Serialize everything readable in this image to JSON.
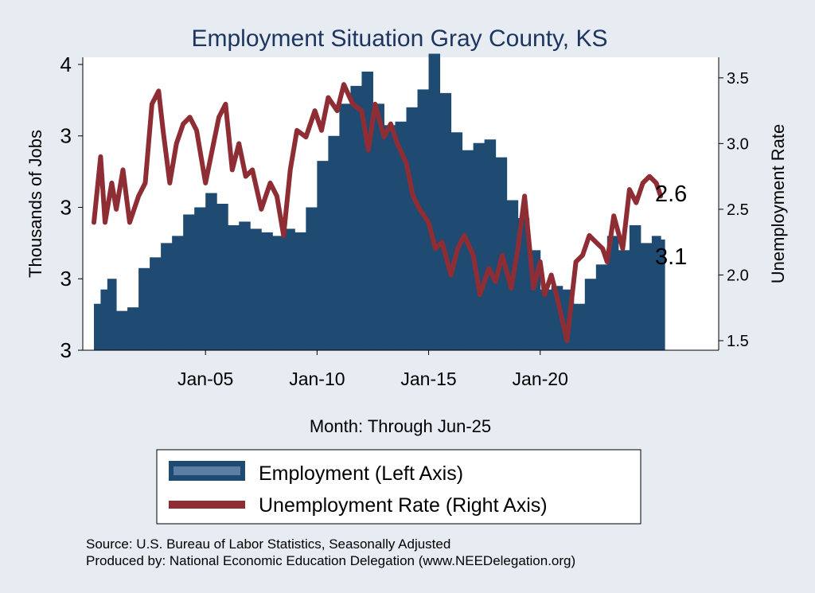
{
  "colors": {
    "background": "#e6ecf2",
    "plot_background": "#ffffff",
    "employment": "#1f4a72",
    "unemployment": "#8f2d35",
    "title": "#1e3560",
    "text": "#000000"
  },
  "chart_data": {
    "type": "bar+line",
    "title": "Employment Situation Gray  County, KS",
    "xlabel": "Month: Through Jun-25",
    "ylabel_left": "Thousands of Jobs",
    "ylabel_right": "Unemployment Rate",
    "x_ticks": [
      "Jan-05",
      "Jan-10",
      "Jan-15",
      "Jan-20"
    ],
    "x_tick_years": [
      2005,
      2010,
      2015,
      2020
    ],
    "x_range": [
      1999.5,
      2028.0
    ],
    "left_ticks": [
      "3",
      "3",
      "3",
      "3",
      "4"
    ],
    "left_tick_values": [
      2.8,
      3.0,
      3.2,
      3.4,
      3.6
    ],
    "left_ylim": [
      2.8,
      3.62
    ],
    "right_ticks": [
      "1.5",
      "2.0",
      "2.5",
      "3.0",
      "3.5"
    ],
    "right_tick_values": [
      1.5,
      2.0,
      2.5,
      3.0,
      3.5
    ],
    "right_ylim": [
      1.5,
      3.62
    ],
    "end_labels": {
      "unemployment": "2.6",
      "employment": "3.1"
    },
    "legend": [
      {
        "key": "employment",
        "label": "Employment (Left Axis)"
      },
      {
        "key": "unemployment",
        "label": "Unemployment Rate (Right Axis)"
      }
    ],
    "series": [
      {
        "name": "Employment",
        "axis": "left",
        "kind": "bar",
        "x": [
          2000.0,
          2000.3,
          2000.6,
          2001.0,
          2001.5,
          2002.0,
          2002.5,
          2003.0,
          2003.5,
          2004.0,
          2004.5,
          2005.0,
          2005.5,
          2006.0,
          2006.5,
          2007.0,
          2007.5,
          2008.0,
          2008.5,
          2009.0,
          2009.5,
          2010.0,
          2010.5,
          2011.0,
          2011.5,
          2012.0,
          2012.5,
          2013.0,
          2013.5,
          2014.0,
          2014.5,
          2015.0,
          2015.5,
          2016.0,
          2016.5,
          2017.0,
          2017.5,
          2018.0,
          2018.5,
          2019.0,
          2019.5,
          2020.0,
          2020.5,
          2021.0,
          2021.5,
          2022.0,
          2022.5,
          2023.0,
          2023.5,
          2024.0,
          2024.5,
          2025.0,
          2025.4
        ],
        "values": [
          2.93,
          2.97,
          3.0,
          2.91,
          2.92,
          3.03,
          3.06,
          3.1,
          3.12,
          3.18,
          3.2,
          3.24,
          3.21,
          3.15,
          3.16,
          3.14,
          3.13,
          3.12,
          3.14,
          3.13,
          3.2,
          3.33,
          3.4,
          3.49,
          3.54,
          3.58,
          3.49,
          3.43,
          3.44,
          3.48,
          3.53,
          3.63,
          3.52,
          3.41,
          3.36,
          3.38,
          3.39,
          3.34,
          3.22,
          3.17,
          3.08,
          2.97,
          2.98,
          2.97,
          2.93,
          3.0,
          3.04,
          3.12,
          3.08,
          3.15,
          3.1,
          3.12,
          3.11
        ]
      },
      {
        "name": "Unemployment Rate",
        "axis": "right",
        "kind": "line",
        "x": [
          2000.0,
          2000.3,
          2000.5,
          2000.8,
          2001.0,
          2001.3,
          2001.6,
          2002.0,
          2002.3,
          2002.6,
          2002.9,
          2003.1,
          2003.4,
          2003.7,
          2004.0,
          2004.3,
          2004.6,
          2005.0,
          2005.3,
          2005.6,
          2005.9,
          2006.2,
          2006.5,
          2006.8,
          2007.1,
          2007.5,
          2007.9,
          2008.2,
          2008.5,
          2008.8,
          2009.1,
          2009.5,
          2009.9,
          2010.2,
          2010.5,
          2010.9,
          2011.2,
          2011.6,
          2012.0,
          2012.3,
          2012.6,
          2013.0,
          2013.3,
          2013.6,
          2014.0,
          2014.3,
          2014.6,
          2015.0,
          2015.3,
          2015.6,
          2016.0,
          2016.3,
          2016.6,
          2017.0,
          2017.3,
          2017.7,
          2018.0,
          2018.3,
          2018.7,
          2019.0,
          2019.3,
          2019.7,
          2020.0,
          2020.2,
          2020.5,
          2020.8,
          2021.2,
          2021.6,
          2021.9,
          2022.2,
          2022.5,
          2022.8,
          2023.0,
          2023.3,
          2023.7,
          2024.0,
          2024.3,
          2024.6,
          2024.9,
          2025.2,
          2025.4
        ],
        "values": [
          2.4,
          2.9,
          2.4,
          2.7,
          2.5,
          2.8,
          2.4,
          2.6,
          2.7,
          3.3,
          3.4,
          3.1,
          2.7,
          3.0,
          3.15,
          3.2,
          3.1,
          2.7,
          2.95,
          3.2,
          3.3,
          2.8,
          3.0,
          2.75,
          2.8,
          2.5,
          2.7,
          2.6,
          2.3,
          2.8,
          3.1,
          3.05,
          3.25,
          3.1,
          3.35,
          3.25,
          3.45,
          3.3,
          3.25,
          2.95,
          3.3,
          3.05,
          3.15,
          3.0,
          2.85,
          2.6,
          2.5,
          2.4,
          2.2,
          2.25,
          2.0,
          2.2,
          2.3,
          2.15,
          1.85,
          2.05,
          1.95,
          2.15,
          1.9,
          2.2,
          2.6,
          1.9,
          2.1,
          1.85,
          2.0,
          1.8,
          1.5,
          2.1,
          2.15,
          2.3,
          2.25,
          2.2,
          2.1,
          2.45,
          2.2,
          2.65,
          2.55,
          2.7,
          2.75,
          2.7,
          2.6
        ]
      }
    ]
  },
  "footer": {
    "source": "Source: U.S. Bureau of Labor Statistics, Seasonally Adjusted",
    "produced": "Produced by: National Economic Education Delegation (www.NEEDelegation.org)"
  }
}
